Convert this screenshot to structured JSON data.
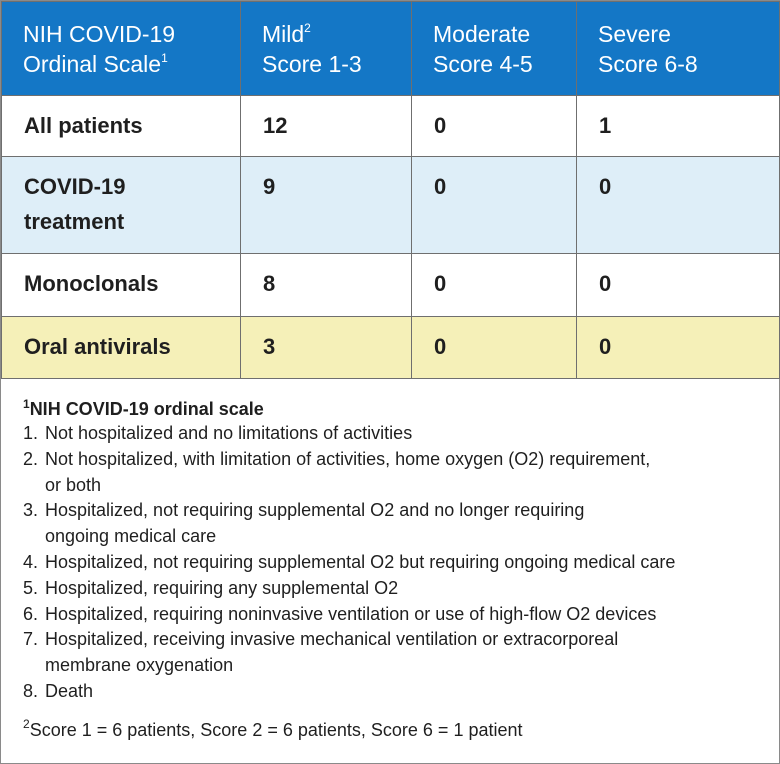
{
  "header": {
    "col1_line1": "NIH COVID-19",
    "col1_line2": "Ordinal Scale",
    "col1_sup": "1",
    "col2_line1": "Mild",
    "col2_sup": "2",
    "col2_line2": "Score 1-3",
    "col3_line1": "Moderate",
    "col3_line2": "Score 4-5",
    "col4_line1": "Severe",
    "col4_line2": "Score 6-8"
  },
  "rows": [
    {
      "label_line1": "All patients",
      "label_line2": "",
      "mild": "12",
      "moderate": "0",
      "severe": "1",
      "color": "#ffffff"
    },
    {
      "label_line1": "COVID-19",
      "label_line2": "treatment",
      "mild": "9",
      "moderate": "0",
      "severe": "0",
      "color": "#deeef8"
    },
    {
      "label_line1": "Monoclonals",
      "label_line2": "",
      "mild": "8",
      "moderate": "0",
      "severe": "0",
      "color": "#ffffff"
    },
    {
      "label_line1": "Oral antivirals",
      "label_line2": "",
      "mild": "3",
      "moderate": "0",
      "severe": "0",
      "color": "#f5f0b8"
    }
  ],
  "legend": {
    "sup": "1",
    "title": "NIH COVID-19 ordinal scale",
    "items": [
      {
        "num": "1.",
        "line1": "Not hospitalized and no limitations of activities",
        "line2": ""
      },
      {
        "num": "2.",
        "line1": "Not hospitalized, with limitation of activities, home oxygen (O2) requirement,",
        "line2": "or both"
      },
      {
        "num": "3.",
        "line1": "Hospitalized, not requiring supplemental O2 and no longer requiring",
        "line2": "ongoing medical care"
      },
      {
        "num": "4.",
        "line1": "Hospitalized, not requiring supplemental O2 but requiring ongoing medical care",
        "line2": ""
      },
      {
        "num": "5.",
        "line1": "Hospitalized, requiring any supplemental O2",
        "line2": ""
      },
      {
        "num": "6.",
        "line1": "Hospitalized, requiring noninvasive ventilation or use of high-flow O2 devices",
        "line2": ""
      },
      {
        "num": "7.",
        "line1": "Hospitalized, receiving invasive mechanical ventilation or extracorporeal",
        "line2": "membrane oxygenation"
      },
      {
        "num": "8.",
        "line1": "Death",
        "line2": ""
      }
    ]
  },
  "footnote": {
    "sup": "2",
    "text": "Score 1 = 6 patients, Score 2 = 6 patients, Score 6 = 1 patient"
  },
  "colors": {
    "header_blue": "#1477c6",
    "row_blue": "#deeef8",
    "row_yellow": "#f5f0b8",
    "border": "#6f6f6f"
  }
}
